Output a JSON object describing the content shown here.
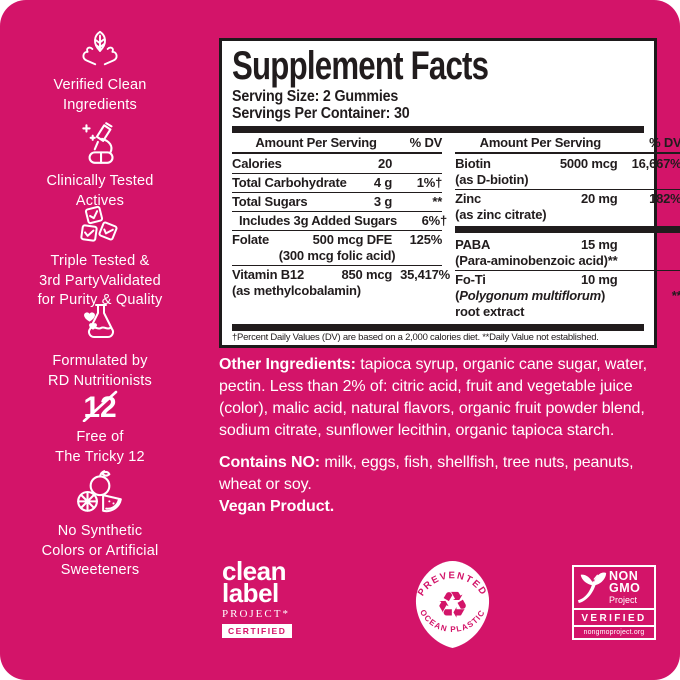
{
  "colors": {
    "brand_pink": "#d31469",
    "panel_ink": "#211c1d",
    "white": "#ffffff"
  },
  "sidebar": {
    "items": [
      {
        "icon": "hands-holding-leaf-icon",
        "label": "Verified Clean\nIngredients"
      },
      {
        "icon": "microscope-icon",
        "label": "Clinically Tested\nActives"
      },
      {
        "icon": "triple-checkmarks-icon",
        "label": "Triple Tested &\n3rd PartyValidated\nfor Purity & Quality"
      },
      {
        "icon": "flask-hearts-icon",
        "label": "Formulated by\nRD Nutritionists"
      },
      {
        "icon": "crossed-out-12-icon",
        "label": "Free of\nThe Tricky 12"
      },
      {
        "icon": "fruits-icon",
        "label": "No Synthetic\nColors or Artificial\nSweeteners"
      }
    ]
  },
  "supplement_facts": {
    "title": "Supplement Facts",
    "serving_size": "Serving Size: 2 Gummies",
    "servings_per_container": "Servings Per Container: 30",
    "amount_header": "Amount Per Serving",
    "dv_header": "% DV",
    "left_column": [
      {
        "lines": [
          [
            "Calories",
            "20",
            ""
          ]
        ],
        "sep": "thin"
      },
      {
        "lines": [
          [
            "Total Carbohydrate",
            "4 g",
            "1%†"
          ]
        ],
        "sep": "thin"
      },
      {
        "lines": [
          [
            "Total Sugars",
            "3 g",
            "**"
          ]
        ],
        "sep": "thin"
      },
      {
        "lines": [
          [
            "Includes 3g Added Sugars",
            "",
            "6%†"
          ]
        ],
        "indent": true,
        "sep": "thin"
      },
      {
        "lines": [
          [
            "Folate",
            "500 mcg DFE",
            "125%"
          ],
          [
            "center:(300 mcg folic acid)",
            "",
            ""
          ]
        ],
        "sep": "thin"
      },
      {
        "lines": [
          [
            "Vitamin B12",
            "850 mcg",
            "35,417%"
          ],
          [
            "(as methylcobalamin)",
            "",
            ""
          ]
        ],
        "sep": "none"
      }
    ],
    "right_column": [
      {
        "lines": [
          [
            "Biotin",
            "5000 mcg",
            "16,667%"
          ],
          [
            "(as D-biotin)",
            "",
            ""
          ]
        ],
        "sep": "thin"
      },
      {
        "lines": [
          [
            "Zinc",
            "20 mg",
            "182%"
          ],
          [
            "(as zinc citrate)",
            "",
            ""
          ]
        ],
        "sep": "bar"
      },
      {
        "lines": [
          [
            "PABA",
            "15 mg",
            ""
          ],
          [
            "(Para-aminobenzoic acid)**",
            "",
            ""
          ]
        ],
        "sep": "thin"
      },
      {
        "lines": [
          [
            "Fo-Ti",
            "10 mg",
            ""
          ],
          [
            "(*Polygonum multiflorum*)",
            "",
            "**"
          ],
          [
            "root extract",
            "",
            ""
          ]
        ],
        "sep": "none"
      }
    ],
    "footnote": "†Percent Daily Values (DV) are based on a 2,000 calories diet. **Daily Value not established."
  },
  "other_ingredients": {
    "lead": "Other Ingredients:",
    "text": "tapioca syrup, organic cane sugar, water, pectin. Less than 2% of: citric acid, fruit and vegetable juice (color), malic acid, natural flavors, organic fruit powder blend, sodium citrate, sunflower lecithin, organic tapioca starch."
  },
  "contains": {
    "lead": "Contains NO:",
    "text": "milk, eggs, fish, shellfish, tree nuts, peanuts, wheat or soy."
  },
  "vegan": "Vegan Product.",
  "badges": {
    "clean_label": {
      "line1": "clean",
      "line2": "label",
      "line3": "PROJECT*",
      "certified": "CERTIFIED"
    },
    "ocean_plastic": {
      "top": "PREVENTED",
      "bottom": "OCEAN PLASTIC",
      "icon": "recycle-arrows-icon",
      "recycle_glyph": "♻"
    },
    "non_gmo": {
      "line1": "NON",
      "line2": "GMO",
      "line3": "Project",
      "verified": "VERIFIED",
      "url": "nongmoproject.org",
      "icon": "butterfly-icon"
    }
  }
}
